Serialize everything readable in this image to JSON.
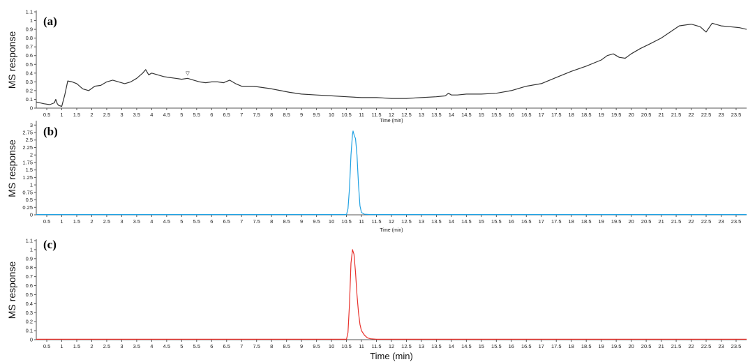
{
  "chart_data": [
    {
      "type": "line",
      "panel_label": "(a)",
      "xlabel": "Time (min)",
      "ylabel": "MS response",
      "xlim": [
        0.15,
        23.85
      ],
      "ylim": [
        0,
        1.1
      ],
      "xticks": [
        "0.5",
        "1",
        "1.5",
        "2",
        "2.5",
        "3",
        "3.5",
        "4",
        "4.5",
        "5",
        "5.5",
        "6",
        "6.5",
        "7",
        "7.5",
        "8",
        "8.5",
        "9",
        "9.5",
        "10",
        "10.5",
        "11",
        "11.5",
        "12",
        "12.5",
        "13",
        "13.5",
        "14",
        "14.5",
        "15",
        "15.5",
        "16",
        "16.5",
        "17",
        "17.5",
        "18",
        "18.5",
        "19",
        "19.5",
        "20",
        "20.5",
        "21",
        "21.5",
        "22",
        "22.5",
        "23",
        "23.5"
      ],
      "yticks": [
        "0",
        "0.1",
        "0.2",
        "0.3",
        "0.4",
        "0.5",
        "0.6",
        "0.7",
        "0.8",
        "0.9",
        "1",
        "1.1"
      ],
      "color": "#333333",
      "annotation": {
        "symbol": "▽",
        "x": 5.2,
        "y": 0.38
      },
      "series": [
        {
          "x": [
            0.15,
            0.4,
            0.6,
            0.75,
            0.8,
            0.85,
            0.9,
            1.0,
            1.1,
            1.2,
            1.35,
            1.5,
            1.7,
            1.9,
            2.1,
            2.3,
            2.5,
            2.7,
            2.9,
            3.1,
            3.3,
            3.5,
            3.7,
            3.8,
            3.9,
            4.0,
            4.2,
            4.4,
            4.6,
            4.8,
            5.0,
            5.2,
            5.4,
            5.6,
            5.8,
            6.0,
            6.2,
            6.4,
            6.6,
            6.7,
            6.8,
            7.0,
            7.2,
            7.4,
            7.6,
            7.8,
            8.0,
            8.3,
            8.6,
            9.0,
            9.5,
            10.0,
            10.5,
            11.0,
            11.5,
            12.0,
            12.5,
            13.0,
            13.5,
            13.8,
            13.9,
            14.0,
            14.2,
            14.5,
            15.0,
            15.5,
            16.0,
            16.5,
            17.0,
            17.5,
            18.0,
            18.5,
            19.0,
            19.2,
            19.4,
            19.6,
            19.8,
            20.0,
            20.3,
            20.6,
            21.0,
            21.3,
            21.6,
            22.0,
            22.3,
            22.5,
            22.7,
            23.0,
            23.3,
            23.6,
            23.85
          ],
          "y": [
            0.07,
            0.05,
            0.04,
            0.06,
            0.1,
            0.05,
            0.03,
            0.02,
            0.15,
            0.31,
            0.3,
            0.28,
            0.22,
            0.2,
            0.25,
            0.26,
            0.3,
            0.32,
            0.3,
            0.28,
            0.3,
            0.34,
            0.4,
            0.44,
            0.38,
            0.4,
            0.38,
            0.36,
            0.35,
            0.34,
            0.33,
            0.34,
            0.32,
            0.3,
            0.29,
            0.3,
            0.3,
            0.29,
            0.32,
            0.3,
            0.28,
            0.25,
            0.25,
            0.25,
            0.24,
            0.23,
            0.22,
            0.2,
            0.18,
            0.16,
            0.15,
            0.14,
            0.13,
            0.12,
            0.12,
            0.11,
            0.11,
            0.12,
            0.13,
            0.14,
            0.17,
            0.15,
            0.15,
            0.16,
            0.16,
            0.17,
            0.2,
            0.25,
            0.28,
            0.35,
            0.42,
            0.48,
            0.55,
            0.6,
            0.62,
            0.58,
            0.57,
            0.62,
            0.68,
            0.73,
            0.8,
            0.87,
            0.94,
            0.96,
            0.93,
            0.87,
            0.97,
            0.94,
            0.93,
            0.92,
            0.9
          ]
        }
      ]
    },
    {
      "type": "line",
      "panel_label": "(b)",
      "xlabel": "Time (min)",
      "ylabel": "MS response",
      "xlim": [
        0.15,
        23.85
      ],
      "ylim": [
        0,
        3.1
      ],
      "xticks": [
        "0.5",
        "1",
        "1.5",
        "2",
        "2.5",
        "3",
        "3.5",
        "4",
        "4.5",
        "5",
        "5.5",
        "6",
        "6.5",
        "7",
        "7.5",
        "8",
        "8.5",
        "9",
        "9.5",
        "10",
        "10.5",
        "11",
        "11.5",
        "12",
        "12.5",
        "13",
        "13.5",
        "14",
        "14.5",
        "15",
        "15.5",
        "16",
        "16.5",
        "17",
        "17.5",
        "18",
        "18.5",
        "19",
        "19.5",
        "20",
        "20.5",
        "21",
        "21.5",
        "22",
        "22.5",
        "23",
        "23.5"
      ],
      "yticks": [
        "0",
        "0.25",
        "0.5",
        "0.75",
        "1",
        "1.25",
        "1.5",
        "1.75",
        "2",
        "2.25",
        "2.5",
        "2.75",
        "3"
      ],
      "color": "#1fa1e3",
      "series": [
        {
          "x": [
            0.15,
            10.5,
            10.55,
            10.6,
            10.65,
            10.7,
            10.72,
            10.76,
            10.8,
            10.85,
            10.9,
            10.95,
            11.0,
            11.1,
            11.3,
            23.85
          ],
          "y": [
            0.01,
            0.01,
            0.2,
            0.9,
            2.0,
            2.7,
            2.8,
            2.65,
            2.55,
            2.0,
            1.0,
            0.3,
            0.08,
            0.02,
            0.01,
            0.01
          ]
        }
      ]
    },
    {
      "type": "line",
      "panel_label": "(c)",
      "xlabel": "Time (min)",
      "ylabel": "MS response",
      "xlim": [
        0.15,
        23.85
      ],
      "ylim": [
        0,
        1.1
      ],
      "xticks": [
        "0.5",
        "1",
        "1.5",
        "2",
        "2.5",
        "3",
        "3.5",
        "4",
        "4.5",
        "5",
        "5.5",
        "6",
        "6.5",
        "7",
        "7.5",
        "8",
        "8.5",
        "9",
        "9.5",
        "10",
        "10.5",
        "11",
        "11.5",
        "12",
        "12.5",
        "13",
        "13.5",
        "14",
        "14.5",
        "15",
        "15.5",
        "16",
        "16.5",
        "17",
        "17.5",
        "18",
        "18.5",
        "19",
        "19.5",
        "20",
        "20.5",
        "21",
        "21.5",
        "22",
        "22.5",
        "23",
        "23.5"
      ],
      "yticks": [
        "0",
        "0.1",
        "0.2",
        "0.3",
        "0.4",
        "0.5",
        "0.6",
        "0.7",
        "0.8",
        "0.9",
        "1",
        "1.1"
      ],
      "color": "#e8312b",
      "series": [
        {
          "x": [
            0.15,
            10.5,
            10.55,
            10.6,
            10.65,
            10.7,
            10.75,
            10.8,
            10.85,
            10.9,
            10.95,
            11.0,
            11.1,
            11.2,
            11.3,
            11.5,
            23.85
          ],
          "y": [
            0.005,
            0.005,
            0.08,
            0.4,
            0.85,
            1.0,
            0.95,
            0.75,
            0.5,
            0.3,
            0.17,
            0.1,
            0.05,
            0.02,
            0.01,
            0.005,
            0.005
          ]
        }
      ]
    }
  ]
}
